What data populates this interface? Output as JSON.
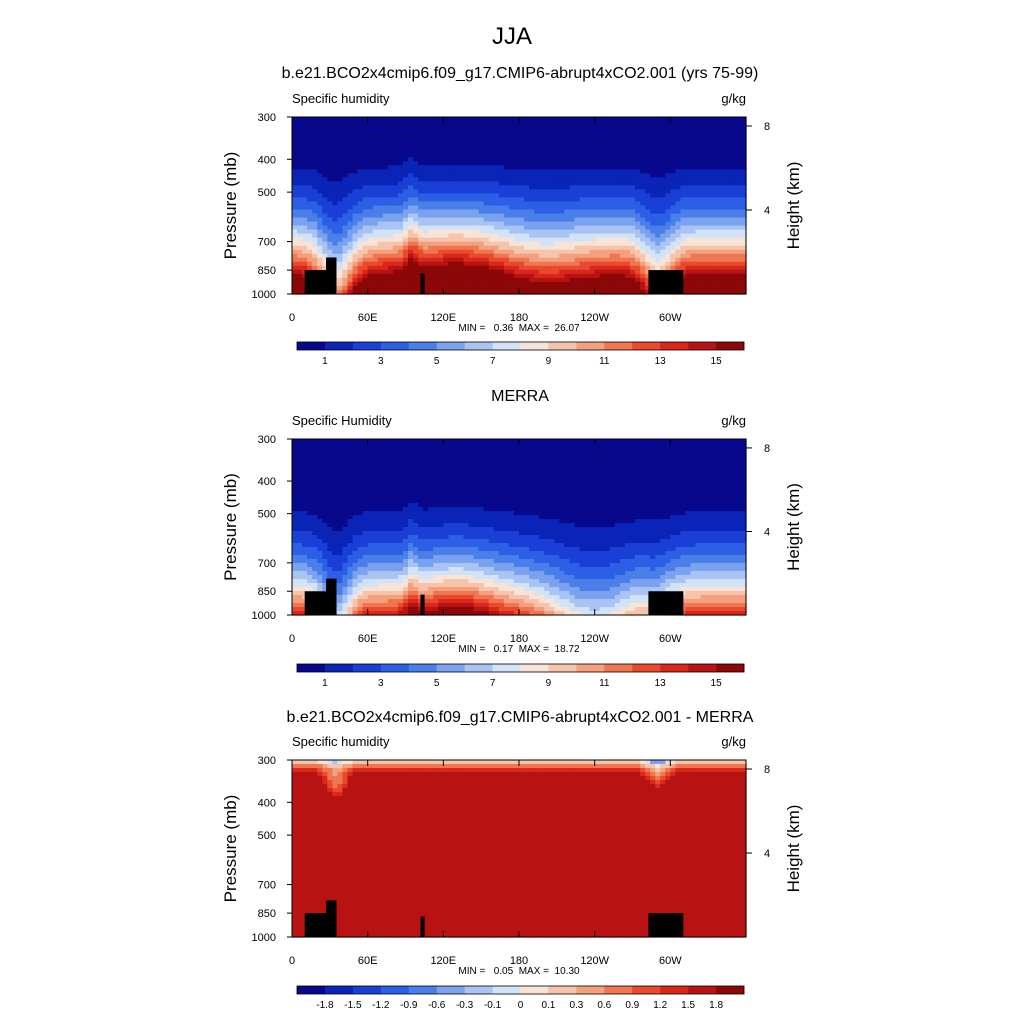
{
  "figure_title": "JJA",
  "chart_data": [
    {
      "type": "heatmap",
      "title": "b.e21.BCO2x4cmip6.f09_g17.CMIP6-abrupt4xCO2.001 (yrs 75-99)",
      "left_label": "Specific humidity",
      "units": "g/kg",
      "ylabel": "Pressure (mb)",
      "ylabel_right": "Height (km)",
      "x_ticks": [
        "0",
        "60E",
        "120E",
        "180",
        "120W",
        "60W"
      ],
      "y_ticks": [
        "300",
        "400",
        "500",
        "700",
        "850",
        "1000"
      ],
      "y_ticks_right": [
        "8",
        "4"
      ],
      "ylim": [
        1000,
        300
      ],
      "min_max": "MIN =   0.36  MAX =  26.07",
      "min": 0.36,
      "max": 26.07,
      "colorbar_labels": [
        "1",
        "3",
        "5",
        "7",
        "9",
        "11",
        "13",
        "15"
      ],
      "colorbar_levels": [
        0,
        1,
        2,
        3,
        4,
        5,
        6,
        7,
        8,
        9,
        10,
        11,
        12,
        13,
        14,
        15
      ]
    },
    {
      "type": "heatmap",
      "title": "MERRA",
      "left_label": "Specific Humidity",
      "units": "g/kg",
      "ylabel": "Pressure (mb)",
      "ylabel_right": "Height (km)",
      "x_ticks": [
        "0",
        "60E",
        "120E",
        "180",
        "120W",
        "60W"
      ],
      "y_ticks": [
        "300",
        "400",
        "500",
        "700",
        "850",
        "1000"
      ],
      "y_ticks_right": [
        "8",
        "4"
      ],
      "ylim": [
        1000,
        300
      ],
      "min_max": "MIN =   0.17  MAX =  18.72",
      "min": 0.17,
      "max": 18.72,
      "colorbar_labels": [
        "1",
        "3",
        "5",
        "7",
        "9",
        "11",
        "13",
        "15"
      ],
      "colorbar_levels": [
        0,
        1,
        2,
        3,
        4,
        5,
        6,
        7,
        8,
        9,
        10,
        11,
        12,
        13,
        14,
        15
      ]
    },
    {
      "type": "heatmap",
      "title": "b.e21.BCO2x4cmip6.f09_g17.CMIP6-abrupt4xCO2.001 - MERRA",
      "left_label": "Specific humidity",
      "units": "g/kg",
      "ylabel": "Pressure (mb)",
      "ylabel_right": "Height (km)",
      "x_ticks": [
        "0",
        "60E",
        "120E",
        "180",
        "120W",
        "60W"
      ],
      "y_ticks": [
        "300",
        "400",
        "500",
        "700",
        "850",
        "1000"
      ],
      "y_ticks_right": [
        "8",
        "4"
      ],
      "ylim": [
        1000,
        300
      ],
      "min_max": "MIN =   0.05  MAX =  10.30",
      "min": 0.05,
      "max": 10.3,
      "colorbar_labels": [
        "-1.8",
        "-1.5",
        "-1.2",
        "-0.9",
        "-0.6",
        "-0.3",
        "-0.1",
        "0",
        "0.1",
        "0.3",
        "0.6",
        "0.9",
        "1.2",
        "1.5",
        "1.8"
      ],
      "colorbar_levels": [
        -1.8,
        -1.5,
        -1.2,
        -0.9,
        -0.6,
        -0.3,
        -0.1,
        0,
        0.1,
        0.3,
        0.6,
        0.9,
        1.2,
        1.5,
        1.8
      ]
    }
  ],
  "colors": {
    "colormap": [
      "#08088c",
      "#0b24b8",
      "#1a3fd6",
      "#2c5ee6",
      "#4a7fe9",
      "#7aa2ee",
      "#a9c4f2",
      "#d3e3f7",
      "#f7e4d6",
      "#f6c4ac",
      "#f4a07e",
      "#f07652",
      "#e9492d",
      "#d9271c",
      "#b81313",
      "#8c0707"
    ],
    "land": "#000000"
  }
}
